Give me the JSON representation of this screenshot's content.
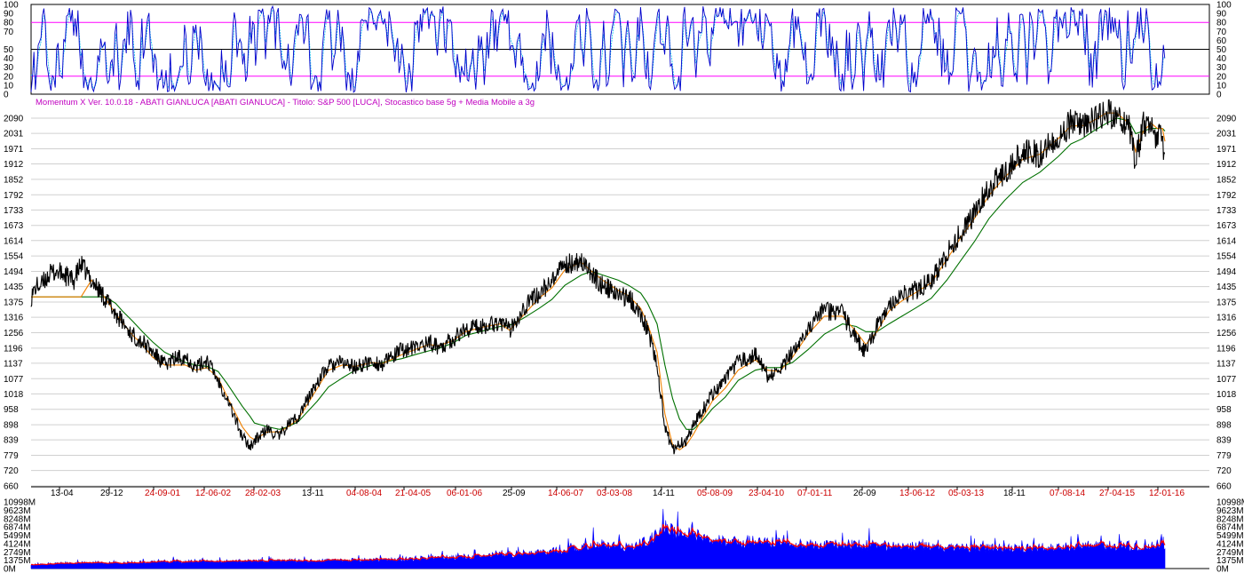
{
  "header_text": "Momentum X  Ver. 10.0.18  -  ABATI GIANLUCA  [ABATI GIANLUCA] - Titolo: S&P 500  [LUCA],   Stocastico base 5g + Media Mobile a 3g",
  "colors": {
    "header": "#c000c0",
    "stoch_main": "#0000cc",
    "stoch_signal": "#00bbee",
    "stoch_levels": "#ff00ff",
    "stoch_mid": "#000000",
    "price": "#000000",
    "ma_fast": "#f08000",
    "ma_slow": "#007000",
    "volume_bar": "#0000ff",
    "volume_ma": "#ff0000",
    "date_black": "#000000",
    "date_red": "#cc0000",
    "grid": "#d0d0d0"
  },
  "chart_data": [
    {
      "type": "line",
      "name": "stochastic-oscillator",
      "ylim": [
        0,
        100
      ],
      "yticks": [
        "100",
        "90",
        "80",
        "70",
        "60",
        "50",
        "40",
        "30",
        "20",
        "10",
        "0"
      ],
      "yticks_left": [
        "100",
        "90",
        "80",
        "70",
        "50",
        "40",
        "30",
        "20",
        "10",
        "0"
      ],
      "levels": [
        80,
        50,
        20
      ]
    },
    {
      "type": "line",
      "name": "price-chart",
      "ylim": [
        660,
        2120
      ],
      "yticks": [
        "2090",
        "2031",
        "1971",
        "1912",
        "1852",
        "1792",
        "1733",
        "1673",
        "1614",
        "1554",
        "1494",
        "1435",
        "1375",
        "1316",
        "1256",
        "1196",
        "1137",
        "1077",
        "1018",
        "958",
        "898",
        "839",
        "779",
        "720",
        "660"
      ],
      "x": [
        0,
        6,
        12,
        20,
        29,
        39,
        49,
        58,
        70,
        86,
        98,
        106,
        118,
        129,
        141,
        155,
        167,
        179,
        191,
        204,
        217,
        227,
        245,
        254,
        259,
        274,
        288,
        298,
        310,
        332,
        345,
        361,
        376,
        396,
        407,
        430,
        445,
        461,
        473,
        489,
        504,
        527,
        544,
        555,
        570,
        589,
        604,
        619,
        638,
        650,
        663,
        681,
        693,
        707,
        715,
        726,
        735,
        744,
        752,
        760,
        768,
        778,
        790,
        805,
        820,
        840,
        854,
        868,
        883,
        901,
        920,
        941,
        957,
        968,
        981,
        995,
        1010,
        1025,
        1044,
        1062,
        1079,
        1094,
        1111,
        1129,
        1150,
        1170,
        1191,
        1206,
        1219,
        1232,
        1247,
        1259,
        1273,
        1281,
        1290,
        1299,
        1306,
        1312,
        1315
      ],
      "close": [
        1395,
        1435,
        1440,
        1480,
        1495,
        1480,
        1455,
        1520,
        1460,
        1390,
        1330,
        1295,
        1245,
        1220,
        1180,
        1130,
        1155,
        1165,
        1120,
        1150,
        1070,
        1005,
        850,
        815,
        835,
        880,
        850,
        900,
        930,
        1065,
        1125,
        1140,
        1120,
        1145,
        1130,
        1190,
        1195,
        1220,
        1200,
        1230,
        1270,
        1285,
        1300,
        1265,
        1350,
        1410,
        1450,
        1520,
        1540,
        1480,
        1440,
        1400,
        1395,
        1330,
        1270,
        1130,
        890,
        800,
        830,
        830,
        900,
        950,
        1020,
        1070,
        1140,
        1170,
        1090,
        1100,
        1180,
        1280,
        1340,
        1330,
        1230,
        1180,
        1280,
        1370,
        1400,
        1420,
        1460,
        1560,
        1650,
        1720,
        1820,
        1880,
        1960,
        1950,
        2020,
        2070,
        2050,
        2080,
        2110,
        2100,
        2060,
        1920,
        2060,
        2090,
        2000,
        2040,
        1890
      ],
      "ma_fast": [
        1395,
        1395,
        1395,
        1395,
        1395,
        1395,
        1395,
        1395,
        1460,
        1390,
        1330,
        1295,
        1245,
        1210,
        1160,
        1130,
        1130,
        1130,
        1110,
        1120,
        1080,
        1010,
        890,
        850,
        840,
        870,
        870,
        890,
        920,
        1040,
        1110,
        1130,
        1125,
        1140,
        1135,
        1170,
        1190,
        1210,
        1205,
        1225,
        1260,
        1280,
        1290,
        1265,
        1320,
        1390,
        1430,
        1500,
        1530,
        1495,
        1460,
        1420,
        1400,
        1350,
        1290,
        1180,
        940,
        820,
        800,
        820,
        860,
        920,
        990,
        1040,
        1110,
        1150,
        1110,
        1105,
        1160,
        1250,
        1320,
        1320,
        1260,
        1210,
        1260,
        1340,
        1380,
        1410,
        1450,
        1540,
        1630,
        1700,
        1790,
        1860,
        1930,
        1950,
        2010,
        2060,
        2060,
        2080,
        2110,
        2110,
        2070,
        1960,
        2040,
        2070,
        2050,
        2050,
        2000
      ],
      "ma_slow": [
        1395,
        1395,
        1395,
        1395,
        1395,
        1395,
        1395,
        1395,
        1395,
        1395,
        1370,
        1340,
        1300,
        1260,
        1220,
        1180,
        1160,
        1140,
        1130,
        1125,
        1105,
        1060,
        970,
        930,
        905,
        890,
        880,
        890,
        910,
        990,
        1045,
        1080,
        1110,
        1130,
        1140,
        1155,
        1170,
        1185,
        1195,
        1215,
        1245,
        1265,
        1280,
        1285,
        1310,
        1350,
        1385,
        1440,
        1480,
        1495,
        1480,
        1460,
        1440,
        1410,
        1370,
        1290,
        1130,
        1000,
        920,
        880,
        880,
        910,
        960,
        1005,
        1070,
        1110,
        1120,
        1120,
        1140,
        1190,
        1250,
        1290,
        1280,
        1260,
        1260,
        1290,
        1320,
        1350,
        1390,
        1460,
        1540,
        1610,
        1700,
        1770,
        1840,
        1880,
        1940,
        1990,
        2010,
        2040,
        2070,
        2090,
        2080,
        2030,
        2040,
        2050,
        2050,
        2050,
        2040
      ]
    },
    {
      "type": "bar",
      "name": "volume",
      "ylim": [
        0,
        10998
      ],
      "yticks": [
        "10998M",
        "9623M",
        "8248M",
        "6874M",
        "5499M",
        "4124M",
        "2749M",
        "1375M",
        "0M"
      ],
      "x": [
        0,
        40,
        80,
        120,
        160,
        200,
        240,
        280,
        320,
        360,
        400,
        440,
        480,
        520,
        560,
        600,
        620,
        640,
        660,
        680,
        700,
        720,
        730,
        740,
        760,
        780,
        800,
        820,
        840,
        860,
        880,
        900,
        920,
        960,
        1000,
        1040,
        1080,
        1120,
        1160,
        1200,
        1240,
        1280,
        1315
      ],
      "values": [
        700,
        900,
        1000,
        1000,
        1100,
        1200,
        1200,
        1300,
        1300,
        1350,
        1400,
        1600,
        1800,
        2000,
        2400,
        2700,
        3100,
        3600,
        3800,
        3700,
        3600,
        5000,
        7000,
        6000,
        5600,
        5000,
        4600,
        4300,
        4500,
        4200,
        4000,
        3900,
        3800,
        3900,
        3700,
        3500,
        3300,
        3300,
        3300,
        3600,
        3700,
        3800,
        4100
      ]
    }
  ],
  "date_labels": [
    {
      "text": "13-04",
      "color": "black"
    },
    {
      "text": "29-12",
      "color": "black"
    },
    {
      "text": "24-09-01",
      "color": "red"
    },
    {
      "text": "12-06-02",
      "color": "red"
    },
    {
      "text": "28-02-03",
      "color": "red"
    },
    {
      "text": "13-11",
      "color": "black"
    },
    {
      "text": "04-08-04",
      "color": "red"
    },
    {
      "text": "21-04-05",
      "color": "red"
    },
    {
      "text": "06-01-06",
      "color": "red"
    },
    {
      "text": "25-09",
      "color": "black"
    },
    {
      "text": "14-06-07",
      "color": "red"
    },
    {
      "text": "03-03-08",
      "color": "red"
    },
    {
      "text": "14-11",
      "color": "black"
    },
    {
      "text": "05-08-09",
      "color": "red"
    },
    {
      "text": "23-04-10",
      "color": "red"
    },
    {
      "text": "07-01-11",
      "color": "red"
    },
    {
      "text": "26-09",
      "color": "black"
    },
    {
      "text": "13-06-12",
      "color": "red"
    },
    {
      "text": "05-03-13",
      "color": "red"
    },
    {
      "text": "18-11",
      "color": "black"
    },
    {
      "text": "07-08-14",
      "color": "red"
    },
    {
      "text": "27-04-15",
      "color": "red"
    },
    {
      "text": "12-01-16",
      "color": "red"
    }
  ]
}
